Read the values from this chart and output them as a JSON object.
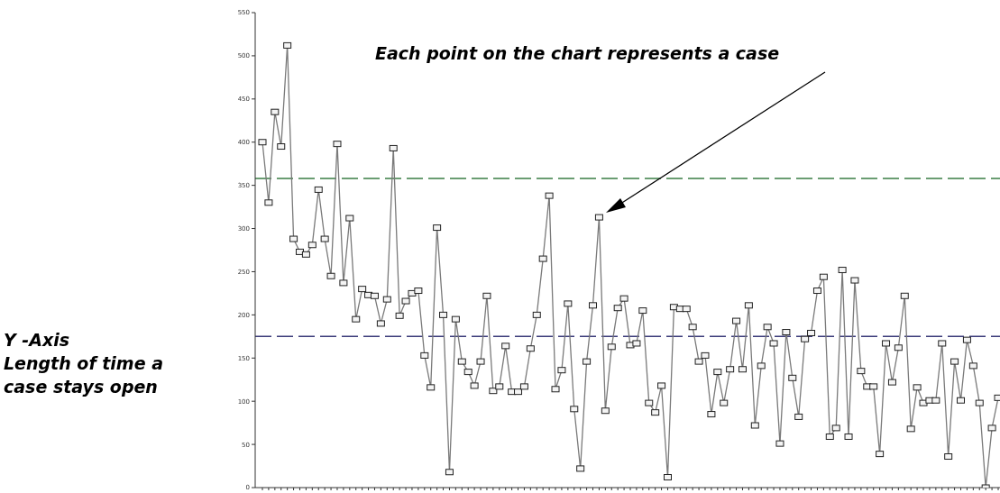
{
  "chart_data": {
    "type": "line",
    "ylabel": "Y -Axis\nLength of time a\ncase stays open",
    "annotations": [
      "Each point on the chart represents a case"
    ],
    "categories": [
      null,
      null,
      null,
      null,
      null,
      null,
      null,
      null,
      null,
      null,
      null,
      null,
      null,
      null,
      null,
      null,
      null,
      null,
      null,
      null,
      null,
      null,
      null,
      null,
      null,
      null,
      null,
      null,
      null,
      null,
      null,
      null,
      null,
      null,
      null,
      null,
      null,
      null,
      null,
      null,
      null,
      null,
      null,
      null,
      null,
      null,
      null,
      null,
      null,
      null,
      null,
      null,
      null,
      null,
      null,
      null,
      null,
      null,
      null,
      null,
      null,
      null,
      null,
      null,
      null,
      null,
      null,
      null,
      null,
      null,
      null,
      null,
      null,
      null,
      null,
      null,
      null,
      null,
      null,
      null,
      null,
      null,
      null,
      null,
      null,
      null,
      null,
      null,
      null,
      null,
      null,
      null,
      null,
      null,
      null,
      null,
      null,
      null,
      null,
      null,
      null,
      null,
      null,
      null,
      null,
      null,
      null,
      null,
      null,
      null,
      null,
      null,
      null,
      null,
      null,
      null,
      null,
      null,
      null
    ],
    "series": [
      {
        "color": "#7a7a7a",
        "values": [
          400,
          330,
          435,
          395,
          512,
          288,
          273,
          270,
          281,
          345,
          288,
          245,
          398,
          237,
          312,
          195,
          230,
          223,
          222,
          190,
          218,
          393,
          199,
          216,
          225,
          228,
          153,
          116,
          301,
          200,
          18,
          195,
          146,
          134,
          118,
          146,
          222,
          112,
          117,
          164,
          111,
          111,
          117,
          161,
          200,
          265,
          338,
          114,
          136,
          213,
          91,
          22,
          146,
          211,
          313,
          89,
          163,
          208,
          219,
          165,
          167,
          205,
          98,
          87,
          118,
          12,
          209,
          207,
          207,
          186,
          146,
          153,
          85,
          134,
          98,
          137,
          193,
          137,
          211,
          72,
          141,
          186,
          167,
          51,
          180,
          127,
          82,
          172,
          179,
          228,
          244,
          59,
          69,
          252,
          59,
          240,
          135,
          117,
          117,
          39,
          167,
          122,
          162,
          222,
          68,
          116,
          98,
          101,
          101,
          167,
          36,
          146,
          101,
          171,
          141,
          98,
          0,
          69,
          104
        ]
      }
    ],
    "ylim": [
      0,
      550
    ],
    "yticks": [
      0,
      50,
      100,
      150,
      200,
      250,
      300,
      350,
      400,
      450,
      500,
      550
    ],
    "ref_lines": [
      {
        "axis": "y",
        "value": 358,
        "color": "#3a7d44",
        "line_style": "dashed"
      },
      {
        "axis": "y",
        "value": 175,
        "color": "#3b3b7a",
        "line_style": "dashed"
      }
    ],
    "marker": "square",
    "grid": false
  }
}
